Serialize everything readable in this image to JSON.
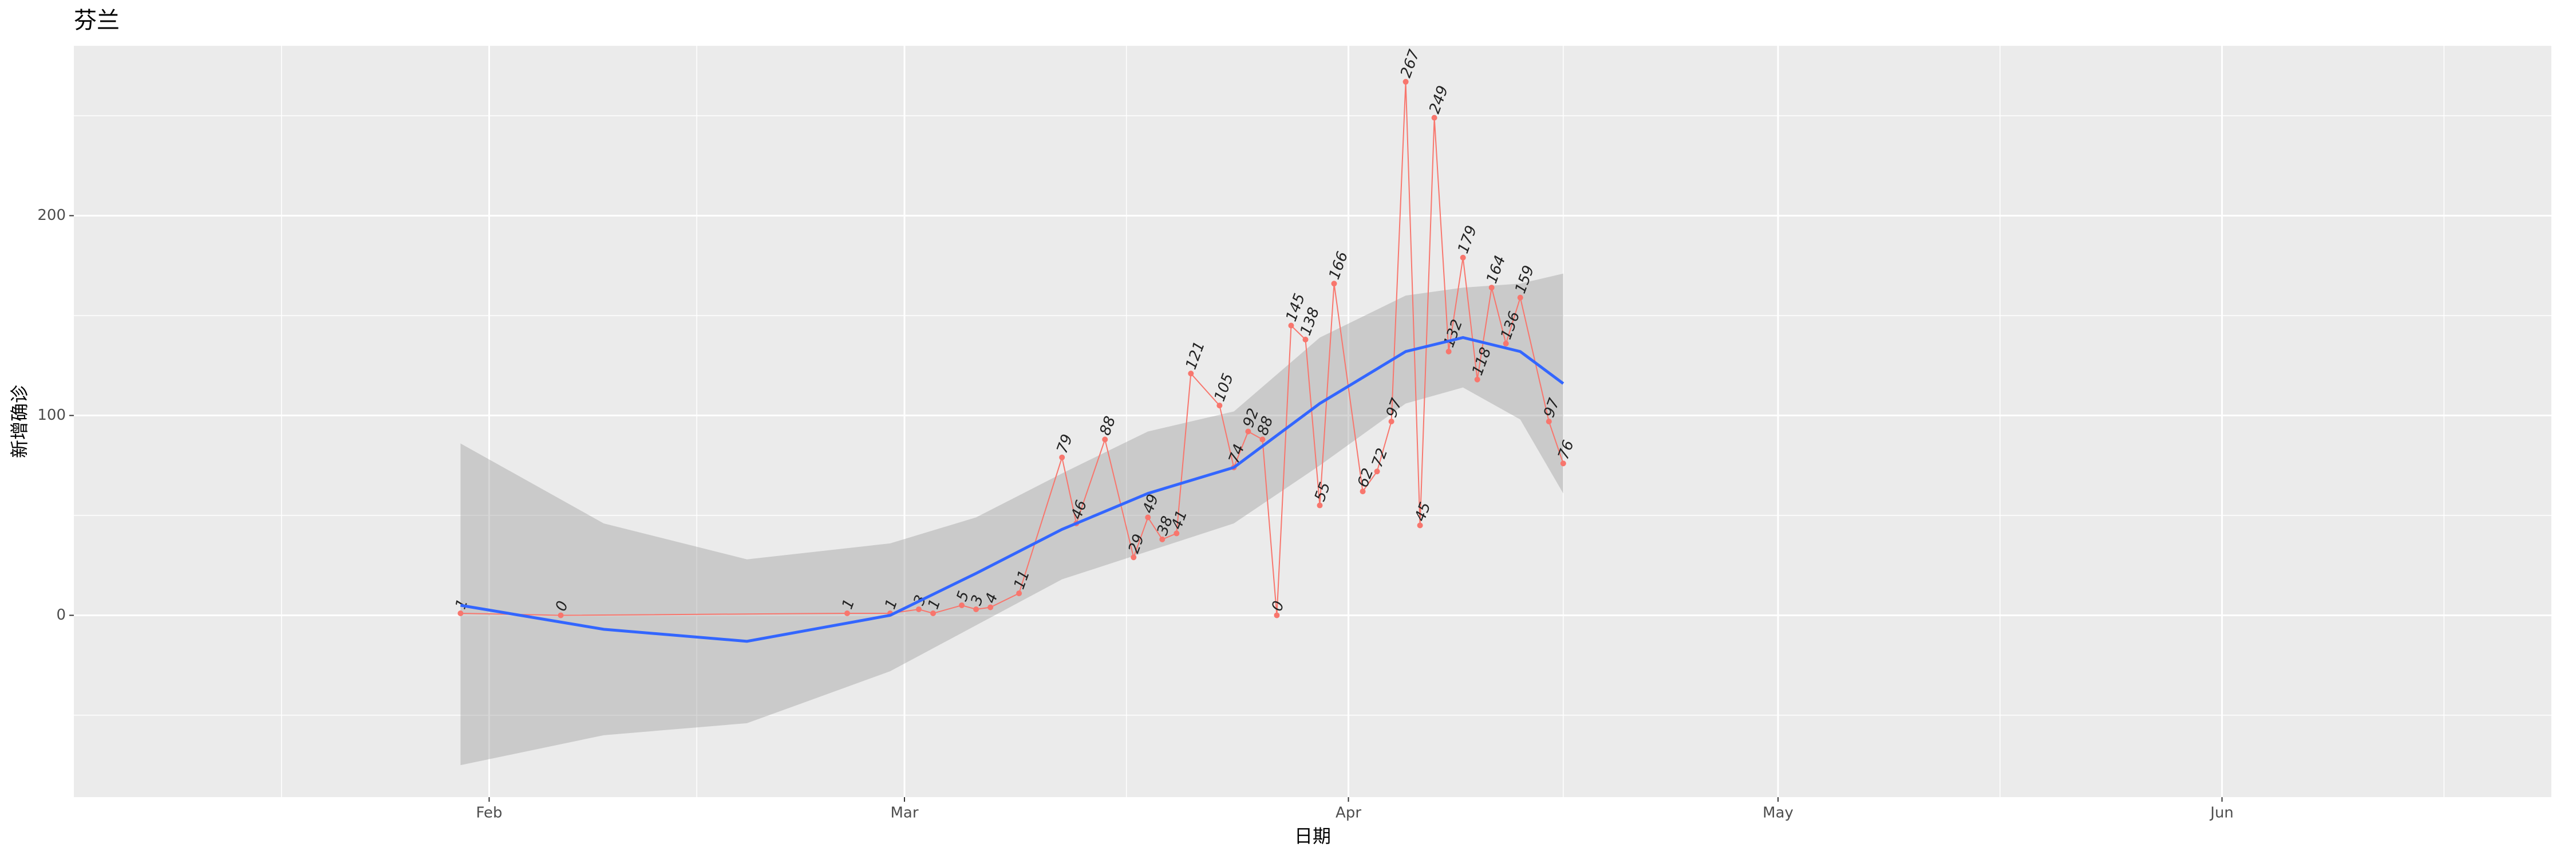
{
  "chart_data": {
    "type": "line",
    "title": "芬兰",
    "x_label": "日期",
    "y_label": "新增确诊",
    "x": [
      30,
      37,
      57,
      60,
      62,
      63,
      65,
      66,
      67,
      69,
      72,
      73,
      75,
      77,
      78,
      79,
      80,
      81,
      83,
      84,
      85,
      86,
      87,
      88,
      89,
      90,
      91,
      93,
      94,
      95,
      96,
      97,
      98,
      99,
      100,
      101,
      102,
      103,
      104,
      106,
      107
    ],
    "values": [
      1,
      0,
      1,
      1,
      3,
      1,
      5,
      3,
      4,
      11,
      79,
      46,
      88,
      29,
      49,
      38,
      41,
      121,
      105,
      74,
      92,
      88,
      0,
      145,
      138,
      55,
      166,
      62,
      72,
      97,
      267,
      45,
      249,
      132,
      179,
      118,
      164,
      136,
      159,
      97,
      76
    ],
    "color": "#f8766d",
    "smooth": {
      "x": [
        30,
        40,
        50,
        60,
        66,
        72,
        78,
        84,
        90,
        96,
        100,
        104,
        107
      ],
      "values": [
        5,
        -7,
        -13,
        0,
        21,
        43,
        61,
        74,
        106,
        132,
        139,
        132,
        116
      ],
      "lower": [
        -75,
        -60,
        -54,
        -28,
        -5,
        18,
        32,
        46,
        75,
        106,
        114,
        98,
        61
      ],
      "upper": [
        86,
        46,
        28,
        36,
        49,
        71,
        92,
        102,
        139,
        160,
        164,
        166,
        171
      ],
      "color": "#3366ff",
      "band_color": "#999999"
    },
    "xlim": [
      3,
      176
    ],
    "xticks": [
      {
        "value": 32,
        "label": "Feb"
      },
      {
        "value": 61,
        "label": "Mar"
      },
      {
        "value": 92,
        "label": "Apr"
      },
      {
        "value": 122,
        "label": "May"
      },
      {
        "value": 153,
        "label": "Jun"
      }
    ],
    "ylim": [
      -91,
      285
    ],
    "yticks": [
      0,
      100,
      200
    ],
    "grid": true
  }
}
